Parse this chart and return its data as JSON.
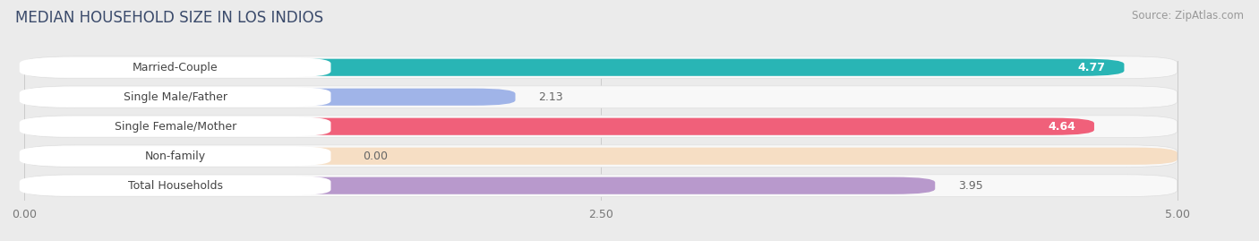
{
  "title": "MEDIAN HOUSEHOLD SIZE IN LOS INDIOS",
  "source": "Source: ZipAtlas.com",
  "categories": [
    "Married-Couple",
    "Single Male/Father",
    "Single Female/Mother",
    "Non-family",
    "Total Households"
  ],
  "values": [
    4.77,
    2.13,
    4.64,
    0.0,
    3.95
  ],
  "bar_colors": [
    "#29b5b5",
    "#a0b4e8",
    "#f0607a",
    "#f5c99a",
    "#b899cc"
  ],
  "bg_color": "#ebebeb",
  "bar_bg_color": "#f8f8f8",
  "container_outline": "#dedede",
  "xlim_data": [
    0,
    5.0
  ],
  "xlim_display": [
    -0.05,
    5.3
  ],
  "xticks": [
    0.0,
    2.5,
    5.0
  ],
  "xtick_labels": [
    "0.00",
    "2.50",
    "5.00"
  ],
  "title_fontsize": 12,
  "label_fontsize": 9,
  "value_fontsize": 9,
  "source_fontsize": 8.5,
  "title_color": "#3a4a6b",
  "label_color": "#444444",
  "value_color_inside": "#ffffff",
  "value_color_outside": "#666666",
  "source_color": "#999999",
  "non_family_full_bar": true
}
